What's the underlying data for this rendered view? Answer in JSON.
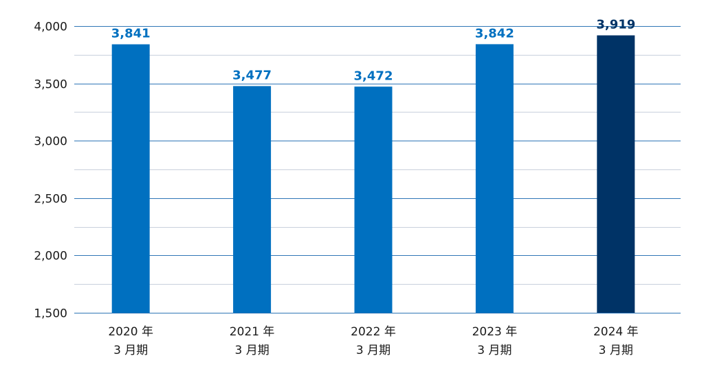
{
  "chart_data": {
    "type": "bar",
    "categories": [
      [
        "2020 年",
        "3 月期"
      ],
      [
        "2021 年",
        "3 月期"
      ],
      [
        "2022 年",
        "3 月期"
      ],
      [
        "2023 年",
        "3 月期"
      ],
      [
        "2024 年",
        "3 月期"
      ]
    ],
    "values": [
      3841,
      3477,
      3472,
      3842,
      3919
    ],
    "value_labels": [
      "3,841",
      "3,477",
      "3,472",
      "3,842",
      "3,919"
    ],
    "ylim": [
      1500,
      4000
    ],
    "yticks": [
      1500,
      2000,
      2500,
      3000,
      3500,
      4000
    ],
    "ytick_labels": [
      "1,500",
      "2,000",
      "2,500",
      "3,000",
      "3,500",
      "4,000"
    ],
    "grid": true,
    "title": "",
    "xlabel": "",
    "ylabel": "",
    "colors": {
      "bar": "#0070c0",
      "highlight_bar": "#003366",
      "label": "#0070c0",
      "highlight_label": "#003366",
      "major_grid": "#2e75b6",
      "minor_grid": "#c8d0dc"
    },
    "highlight_index": 4
  }
}
